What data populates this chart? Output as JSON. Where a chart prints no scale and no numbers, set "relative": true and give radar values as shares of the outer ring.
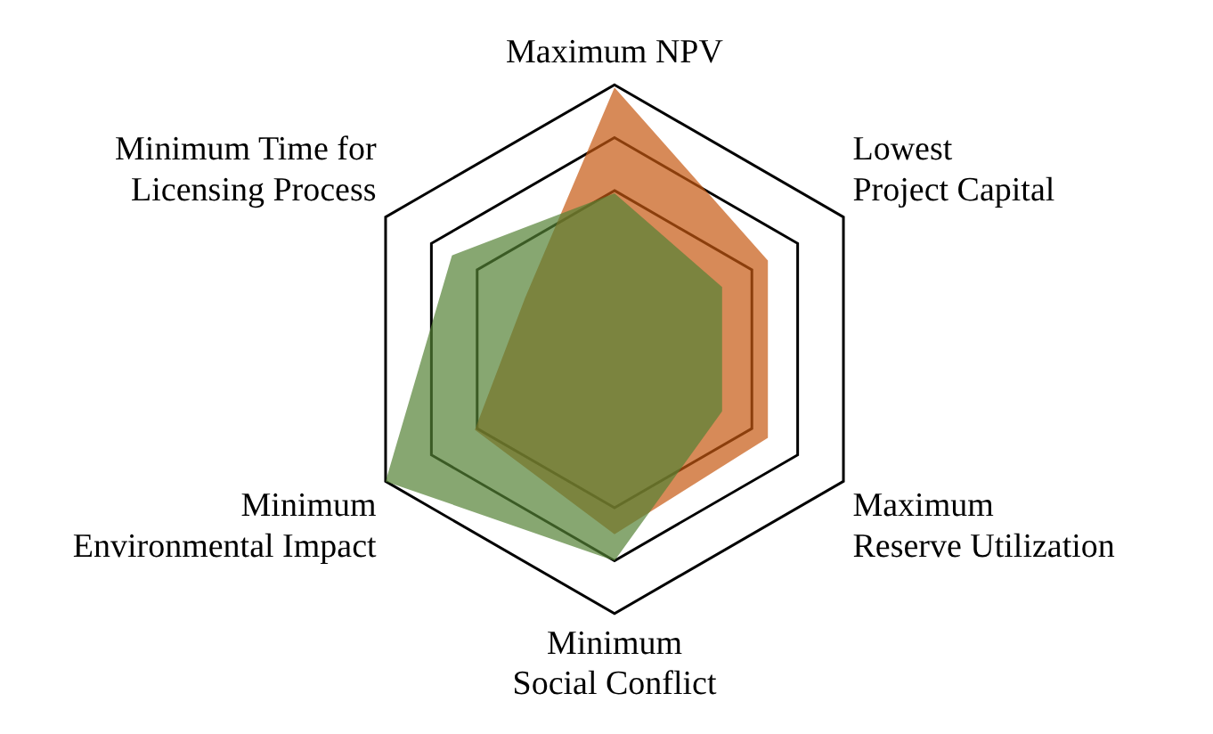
{
  "chart_data": {
    "type": "radar",
    "relative": true,
    "grid": true,
    "legend": false,
    "categories": [
      "Maximum NPV",
      "Lowest\nProject Capital",
      "Maximum\nReserve Utilization",
      "Minimum\nSocial Conflict",
      "Minimum\nEnvironmental Impact",
      "Minimum Time for\nLicensing Process"
    ],
    "series": [
      {
        "color": "#c65911",
        "values": [
          0.99,
          0.67,
          0.67,
          0.7,
          0.61,
          0.39
        ]
      },
      {
        "color": "#548235",
        "values": [
          0.59,
          0.47,
          0.47,
          0.8,
          1.0,
          0.71
        ]
      }
    ]
  }
}
